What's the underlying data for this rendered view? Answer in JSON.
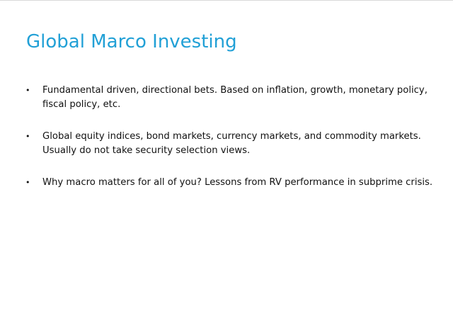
{
  "slide": {
    "title": "Global Marco Investing",
    "title_color": "#21A0D6",
    "bullet_glyph": "•",
    "bullets": [
      "Fundamental driven, directional bets. Based on inflation, growth, monetary policy, fiscal policy, etc.",
      "Global equity indices, bond markets, currency markets, and commodity markets. Usually do not take security selection views.",
      "Why macro matters for all of you? Lessons from RV performance in subprime crisis."
    ]
  }
}
